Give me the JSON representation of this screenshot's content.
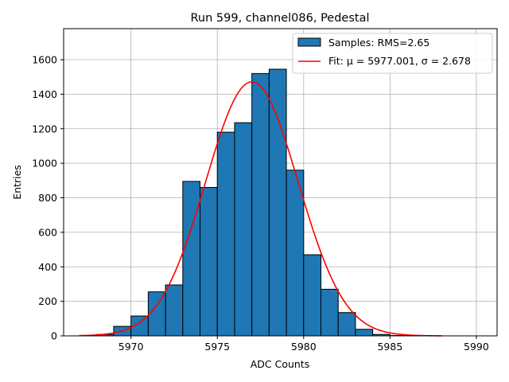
{
  "chart_data": {
    "type": "bar",
    "title": "Run 599, channel086, Pedestal",
    "xlabel": "ADC Counts",
    "ylabel": "Entries",
    "xlim": [
      5966.1,
      5991.2
    ],
    "ylim": [
      0,
      1780
    ],
    "xticks": [
      5970,
      5975,
      5980,
      5985,
      5990
    ],
    "yticks": [
      0,
      200,
      400,
      600,
      800,
      1000,
      1200,
      1400,
      1600
    ],
    "grid": true,
    "legend_position": "top-right",
    "bin_width": 1,
    "series": [
      {
        "name": "Samples: RMS=2.65",
        "kind": "histogram",
        "color": "#1f77b4",
        "edgecolor": "#000000",
        "bins": [
          {
            "x": 5968.5,
            "value": 8
          },
          {
            "x": 5969.5,
            "value": 55
          },
          {
            "x": 5970.5,
            "value": 115
          },
          {
            "x": 5971.5,
            "value": 255
          },
          {
            "x": 5972.5,
            "value": 295
          },
          {
            "x": 5973.5,
            "value": 895
          },
          {
            "x": 5974.5,
            "value": 860
          },
          {
            "x": 5975.5,
            "value": 1180
          },
          {
            "x": 5976.5,
            "value": 1235
          },
          {
            "x": 5977.5,
            "value": 1520
          },
          {
            "x": 5978.5,
            "value": 1545
          },
          {
            "x": 5979.5,
            "value": 960
          },
          {
            "x": 5980.5,
            "value": 470
          },
          {
            "x": 5981.5,
            "value": 270
          },
          {
            "x": 5982.5,
            "value": 135
          },
          {
            "x": 5983.5,
            "value": 38
          },
          {
            "x": 5984.5,
            "value": 8
          },
          {
            "x": 5985.5,
            "value": 2
          }
        ]
      },
      {
        "name": "Fit: μ = 5977.001, σ = 2.678",
        "kind": "gaussian-fit",
        "color": "#ff0000",
        "mu": 5977.001,
        "sigma": 2.678,
        "amplitude": 1472,
        "x_range": [
          5967,
          5988
        ]
      }
    ]
  }
}
